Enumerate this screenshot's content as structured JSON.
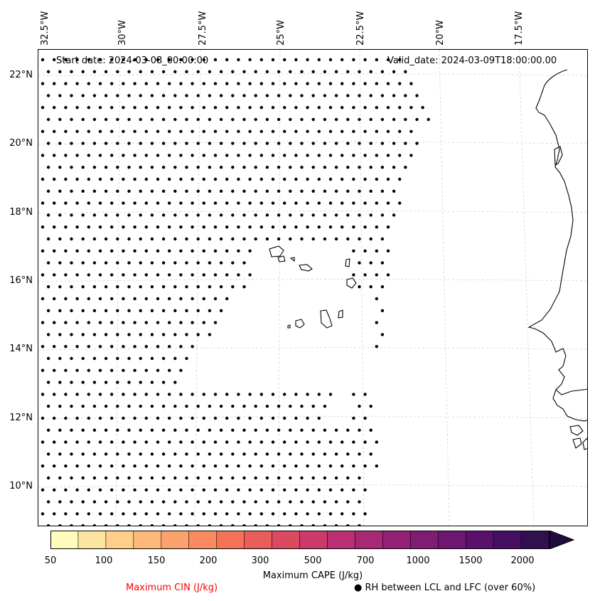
{
  "map": {
    "title_left": "Start date: 2024-03-08_00:00:00",
    "title_right": "Valid_date: 2024-03-09T18:00:00.00",
    "lat_labels": [
      "22°N",
      "20°N",
      "18°N",
      "16°N",
      "14°N",
      "12°N",
      "10°N"
    ],
    "lon_labels": [
      "32.5°W",
      "30°W",
      "27.5°W",
      "25°W",
      "22.5°W",
      "20°W",
      "17.5°W"
    ],
    "extent": {
      "lon_min": -32.6,
      "lon_max": -16.1,
      "lat_min": 8.9,
      "lat_max": 22.7
    },
    "colors": {
      "coast": "#000000",
      "grid": "#cccccc",
      "dots": "#000000"
    }
  },
  "colorbar": {
    "label": "Maximum CAPE (J/kg)",
    "tick_labels": [
      "50",
      "100",
      "150",
      "200",
      "300",
      "500",
      "700",
      "1000",
      "1500",
      "2000"
    ],
    "colors": [
      "#fffbbd",
      "#fee4a1",
      "#fecf8b",
      "#fdb97a",
      "#fca26d",
      "#fa8b61",
      "#f57257",
      "#e95d5a",
      "#db4a61",
      "#cc3a6b",
      "#ba2f72",
      "#a72875",
      "#942176",
      "#811c75",
      "#6e1772",
      "#5a116d",
      "#461062",
      "#311050",
      "#1e0d3a"
    ]
  },
  "legend": {
    "cin_label": "Maximum CIN (J/kg)",
    "cin_color": "#ff0000",
    "rh_label": "RH between LCL and LFC (over 60%)",
    "rh_marker": "●"
  }
}
